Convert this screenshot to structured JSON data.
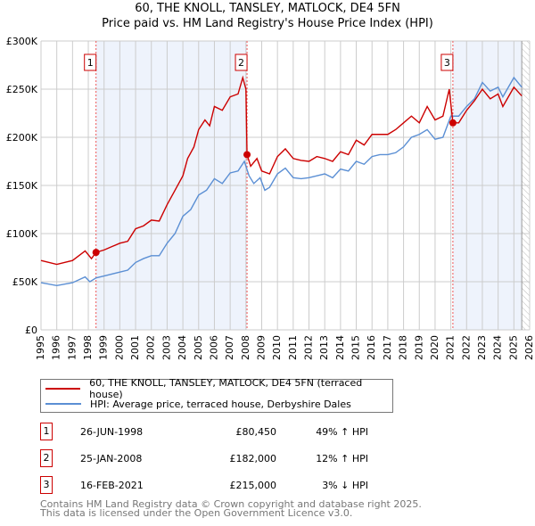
{
  "chart_data": {
    "type": "line",
    "title": "60, THE KNOLL, TANSLEY, MATLOCK, DE4 5FN",
    "subtitle": "Price paid vs. HM Land Registry's House Price Index (HPI)",
    "xlim": [
      1995,
      2026
    ],
    "ylim": [
      0,
      300000
    ],
    "x_ticks": [
      "1995",
      "1996",
      "1997",
      "1998",
      "1999",
      "2000",
      "2001",
      "2002",
      "2003",
      "2004",
      "2005",
      "2006",
      "2007",
      "2008",
      "2009",
      "2010",
      "2011",
      "2012",
      "2013",
      "2014",
      "2015",
      "2016",
      "2017",
      "2018",
      "2019",
      "2020",
      "2021",
      "2022",
      "2023",
      "2024",
      "2025",
      "2026"
    ],
    "y_ticks": [
      {
        "v": 0,
        "label": "£0"
      },
      {
        "v": 50000,
        "label": "£50K"
      },
      {
        "v": 100000,
        "label": "£100K"
      },
      {
        "v": 150000,
        "label": "£150K"
      },
      {
        "v": 200000,
        "label": "£200K"
      },
      {
        "v": 250000,
        "label": "£250K"
      },
      {
        "v": 300000,
        "label": "£300K"
      }
    ],
    "grid": true,
    "series": [
      {
        "name": "60, THE KNOLL, TANSLEY, MATLOCK, DE4 5FN (terraced house)",
        "color": "#cc0000",
        "x": [
          1995,
          1996,
          1997,
          1997.8,
          1998.2,
          1998.49,
          1999,
          2000,
          2000.5,
          2001,
          2001.5,
          2002,
          2002.5,
          2003,
          2003.5,
          2004,
          2004.3,
          2004.7,
          2005,
          2005.4,
          2005.7,
          2006,
          2006.5,
          2007,
          2007.5,
          2007.8,
          2008.0,
          2008.07,
          2008.3,
          2008.7,
          2009,
          2009.5,
          2010,
          2010.5,
          2011,
          2011.5,
          2012,
          2012.5,
          2013,
          2013.5,
          2014,
          2014.5,
          2015,
          2015.5,
          2016,
          2016.5,
          2017,
          2017.5,
          2018,
          2018.5,
          2019,
          2019.5,
          2020,
          2020.5,
          2020.9,
          2021.13,
          2021.5,
          2022,
          2022.5,
          2023,
          2023.5,
          2024,
          2024.3,
          2025,
          2025.5
        ],
        "y": [
          72000,
          68000,
          72000,
          82000,
          74000,
          80450,
          83000,
          90000,
          92000,
          105000,
          108000,
          114000,
          113000,
          130000,
          145000,
          160000,
          178000,
          190000,
          208000,
          218000,
          212000,
          232000,
          228000,
          242000,
          245000,
          262000,
          250000,
          182000,
          170000,
          178000,
          165000,
          162000,
          180000,
          188000,
          178000,
          176000,
          175000,
          180000,
          178000,
          175000,
          185000,
          182000,
          197000,
          192000,
          203000,
          203000,
          203000,
          208000,
          215000,
          222000,
          215000,
          232000,
          218000,
          222000,
          250000,
          215000,
          215000,
          228000,
          238000,
          250000,
          240000,
          245000,
          232000,
          252000,
          243000
        ]
      },
      {
        "name": "HPI: Average price, terraced house, Derbyshire Dales",
        "color": "#5b8fd4",
        "x": [
          1995,
          1996,
          1997,
          1997.8,
          1998.1,
          1998.5,
          1999,
          2000,
          2000.5,
          2001,
          2001.5,
          2002,
          2002.5,
          2003,
          2003.5,
          2004,
          2004.5,
          2005,
          2005.5,
          2006,
          2006.5,
          2007,
          2007.5,
          2007.9,
          2008.2,
          2008.5,
          2008.9,
          2009.2,
          2009.5,
          2010,
          2010.5,
          2011,
          2011.5,
          2012,
          2012.5,
          2013,
          2013.5,
          2014,
          2014.5,
          2015,
          2015.5,
          2016,
          2016.5,
          2017,
          2017.5,
          2018,
          2018.5,
          2019,
          2019.5,
          2020,
          2020.5,
          2021,
          2021.5,
          2022,
          2022.5,
          2023,
          2023.5,
          2024,
          2024.3,
          2025,
          2025.5
        ],
        "y": [
          49000,
          46000,
          49000,
          55000,
          50000,
          54000,
          56000,
          60000,
          62000,
          70000,
          74000,
          77000,
          77000,
          90000,
          100000,
          118000,
          125000,
          140000,
          145000,
          157000,
          152000,
          163000,
          165000,
          175000,
          160000,
          152000,
          158000,
          145000,
          148000,
          162000,
          168000,
          158000,
          157000,
          158000,
          160000,
          162000,
          158000,
          167000,
          165000,
          175000,
          172000,
          180000,
          182000,
          182000,
          184000,
          190000,
          200000,
          203000,
          208000,
          198000,
          200000,
          222000,
          222000,
          232000,
          240000,
          257000,
          248000,
          252000,
          242000,
          262000,
          252000
        ]
      }
    ],
    "sales": [
      {
        "num": "1",
        "x": 1998.49,
        "y": 80450,
        "date": "26-JUN-1998",
        "price": "£80,450",
        "hpi": "49% ↑ HPI"
      },
      {
        "num": "2",
        "x": 2008.07,
        "y": 182000,
        "date": "25-JAN-2008",
        "price": "£182,000",
        "hpi": "12% ↑ HPI"
      },
      {
        "num": "3",
        "x": 2021.13,
        "y": 215000,
        "date": "16-FEB-2021",
        "price": "£215,000",
        "hpi": "3% ↓ HPI"
      }
    ],
    "shaded": [
      [
        1998.49,
        2008.07
      ],
      [
        2021.13,
        2025.5
      ]
    ],
    "hatch_from": 2025.5
  },
  "footer": {
    "line1": "Contains HM Land Registry data © Crown copyright and database right 2025.",
    "line2": "This data is licensed under the Open Government Licence v3.0."
  }
}
